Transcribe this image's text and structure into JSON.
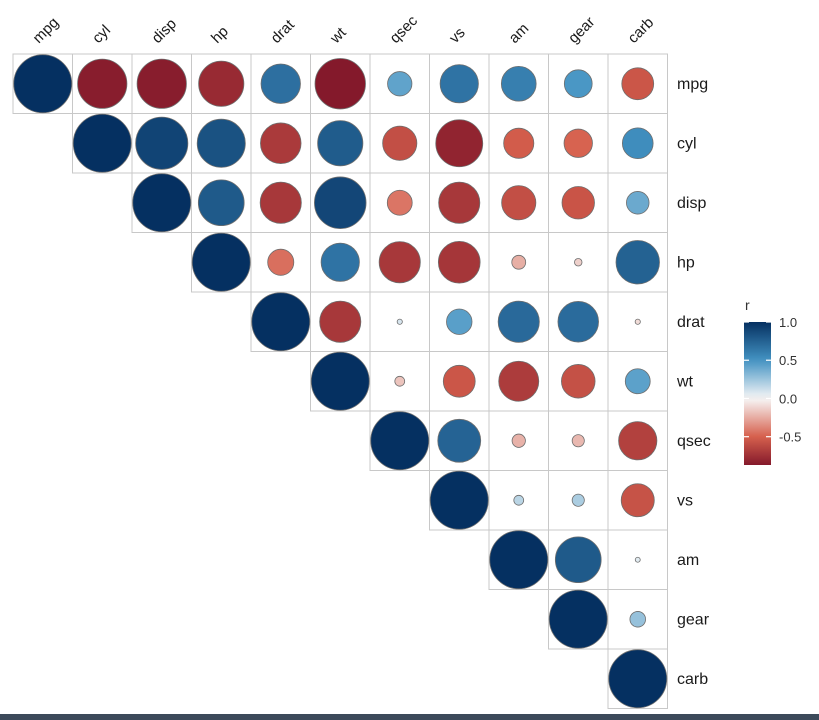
{
  "chart_data": {
    "type": "heatmap",
    "style": "correlation-circles-upper-triangle",
    "variables": [
      "mpg",
      "cyl",
      "disp",
      "hp",
      "drat",
      "wt",
      "qsec",
      "vs",
      "am",
      "gear",
      "carb"
    ],
    "matrix": [
      [
        1.0,
        -0.85,
        -0.85,
        -0.78,
        0.68,
        -0.87,
        0.42,
        0.66,
        0.6,
        0.48,
        -0.55
      ],
      [
        -0.85,
        1.0,
        0.9,
        0.83,
        -0.7,
        0.78,
        -0.59,
        -0.81,
        -0.52,
        -0.49,
        0.53
      ],
      [
        -0.85,
        0.9,
        1.0,
        0.79,
        -0.71,
        0.89,
        -0.43,
        -0.71,
        -0.59,
        -0.56,
        0.39
      ],
      [
        -0.78,
        0.83,
        0.79,
        1.0,
        -0.45,
        0.66,
        -0.71,
        -0.72,
        -0.24,
        -0.13,
        0.75
      ],
      [
        0.68,
        -0.7,
        -0.71,
        -0.45,
        1.0,
        -0.71,
        0.09,
        0.44,
        0.71,
        0.7,
        -0.09
      ],
      [
        -0.87,
        0.78,
        0.89,
        0.66,
        -0.71,
        1.0,
        -0.17,
        -0.55,
        -0.69,
        -0.58,
        0.43
      ],
      [
        0.42,
        -0.59,
        -0.43,
        -0.71,
        0.09,
        -0.17,
        1.0,
        0.74,
        -0.23,
        -0.21,
        -0.66
      ],
      [
        0.66,
        -0.81,
        -0.71,
        -0.72,
        0.44,
        -0.55,
        0.74,
        1.0,
        0.17,
        0.21,
        -0.57
      ],
      [
        0.6,
        -0.52,
        -0.59,
        -0.24,
        0.71,
        -0.69,
        -0.23,
        0.17,
        1.0,
        0.79,
        0.06
      ],
      [
        0.48,
        -0.49,
        -0.56,
        -0.13,
        0.7,
        -0.58,
        -0.21,
        0.21,
        0.79,
        1.0,
        0.27
      ],
      [
        -0.55,
        0.53,
        0.39,
        0.75,
        -0.09,
        0.43,
        -0.66,
        -0.57,
        0.06,
        0.27,
        1.0
      ]
    ],
    "legend": {
      "title": "r",
      "ticks": [
        1.0,
        0.5,
        0.0,
        -0.5
      ],
      "tick_labels": [
        "1.0",
        "0.5",
        "0.0",
        "-0.5"
      ],
      "range": [
        -0.87,
        1.0
      ],
      "placement": "right"
    },
    "colors": {
      "negative": "#67001f",
      "neg_mid": "#d6604d",
      "zero": "#f7f7f7",
      "pos_mid": "#4393c3",
      "positive": "#053061",
      "grid": "#c8c8c8",
      "circle_stroke": "#6e6e6e"
    }
  }
}
